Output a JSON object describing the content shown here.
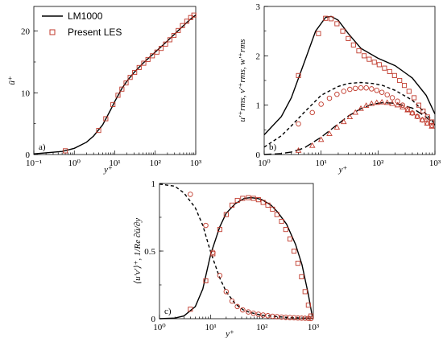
{
  "chart_data": [
    {
      "type": "line",
      "panel_label": "a)",
      "xlabel": "y⁺",
      "ylabel": "ū⁺",
      "xscale": "log",
      "xlim": [
        0.1,
        1000
      ],
      "ylim": [
        0,
        24
      ],
      "x_ticks": [
        0.1,
        1,
        10,
        100,
        1000
      ],
      "x_tick_labels": [
        "10⁻¹",
        "10⁰",
        "10¹",
        "10²",
        "10³"
      ],
      "y_ticks": [
        0,
        10,
        20
      ],
      "y_tick_labels": [
        "0",
        "10",
        "20"
      ],
      "legend": {
        "position": "top-left",
        "entries": [
          "LM1000",
          "Present LES"
        ]
      },
      "series": [
        {
          "name": "LM1000",
          "style": "solid-line",
          "x": [
            0.1,
            0.5,
            1,
            2,
            3,
            5,
            8,
            10,
            15,
            20,
            30,
            50,
            100,
            200,
            400,
            700,
            1000
          ],
          "y": [
            0.1,
            0.5,
            1.0,
            2.0,
            3.0,
            4.8,
            7.3,
            8.6,
            10.7,
            11.9,
            13.3,
            14.8,
            16.6,
            18.4,
            20.3,
            21.8,
            22.6
          ]
        },
        {
          "name": "Present LES",
          "style": "square-markers",
          "x": [
            0.6,
            4,
            6,
            9,
            12,
            15,
            19,
            24,
            31,
            40,
            52,
            66,
            85,
            110,
            140,
            180,
            230,
            290,
            370,
            470,
            600,
            750,
            900
          ],
          "y": [
            0.6,
            3.9,
            5.8,
            8.1,
            9.6,
            10.6,
            11.6,
            12.5,
            13.3,
            14.1,
            14.8,
            15.4,
            16.0,
            16.6,
            17.2,
            17.9,
            18.6,
            19.3,
            20.1,
            20.9,
            21.6,
            22.2,
            22.6
          ]
        }
      ]
    },
    {
      "type": "line",
      "panel_label": "b)",
      "xlabel": "y⁺",
      "ylabel": "u′⁺rms, v′⁺rms, w′⁺rms",
      "xscale": "log",
      "xlim": [
        1,
        1000
      ],
      "ylim": [
        0,
        3
      ],
      "x_ticks": [
        1,
        10,
        100,
        1000
      ],
      "x_tick_labels": [
        "10⁰",
        "10¹",
        "10²",
        "10³"
      ],
      "y_ticks": [
        0,
        1,
        2,
        3
      ],
      "y_tick_labels": [
        "0",
        "1",
        "2",
        "3"
      ],
      "series": [
        {
          "style": "solid-line",
          "x": [
            1,
            2,
            3,
            5,
            8,
            12,
            15,
            20,
            30,
            50,
            100,
            200,
            400,
            700,
            1000
          ],
          "y": [
            0.4,
            0.77,
            1.15,
            1.85,
            2.5,
            2.78,
            2.8,
            2.72,
            2.45,
            2.15,
            1.95,
            1.8,
            1.55,
            1.2,
            0.82
          ]
        },
        {
          "style": "dashed-line",
          "x": [
            1,
            2,
            3,
            5,
            10,
            20,
            30,
            50,
            80,
            120,
            200,
            400,
            700,
            1000
          ],
          "y": [
            0.15,
            0.38,
            0.58,
            0.85,
            1.2,
            1.38,
            1.44,
            1.46,
            1.44,
            1.4,
            1.3,
            1.1,
            0.82,
            0.62
          ]
        },
        {
          "style": "long-dash-line",
          "x": [
            1,
            2,
            3,
            5,
            10,
            20,
            30,
            50,
            80,
            120,
            200,
            400,
            700,
            1000
          ],
          "y": [
            0.0,
            0.02,
            0.05,
            0.13,
            0.35,
            0.62,
            0.78,
            0.93,
            1.02,
            1.05,
            1.04,
            0.94,
            0.76,
            0.6
          ]
        },
        {
          "style": "square-markers",
          "x": [
            4,
            9,
            12,
            15,
            19,
            24,
            30,
            37,
            46,
            57,
            70,
            86,
            105,
            130,
            160,
            195,
            240,
            290,
            350,
            430,
            520,
            620,
            740,
            880
          ],
          "y": [
            1.6,
            2.45,
            2.76,
            2.75,
            2.65,
            2.5,
            2.35,
            2.22,
            2.1,
            2.0,
            1.93,
            1.87,
            1.82,
            1.75,
            1.68,
            1.6,
            1.5,
            1.4,
            1.28,
            1.15,
            1.0,
            0.88,
            0.76,
            0.66
          ]
        },
        {
          "style": "circle-markers",
          "x": [
            4,
            7,
            10,
            14,
            19,
            25,
            32,
            40,
            50,
            62,
            77,
            95,
            117,
            145,
            178,
            220,
            270,
            330,
            400,
            490,
            600,
            730,
            880
          ],
          "y": [
            0.62,
            0.85,
            1.02,
            1.14,
            1.22,
            1.28,
            1.32,
            1.34,
            1.35,
            1.35,
            1.33,
            1.3,
            1.26,
            1.21,
            1.15,
            1.08,
            1.0,
            0.92,
            0.84,
            0.77,
            0.7,
            0.64,
            0.59
          ]
        },
        {
          "style": "triangle-markers",
          "x": [
            4,
            7,
            10,
            14,
            19,
            25,
            32,
            40,
            50,
            62,
            77,
            95,
            117,
            145,
            178,
            220,
            270,
            330,
            400,
            490,
            600,
            730,
            880
          ],
          "y": [
            0.08,
            0.18,
            0.3,
            0.42,
            0.55,
            0.66,
            0.76,
            0.85,
            0.93,
            0.99,
            1.03,
            1.05,
            1.06,
            1.05,
            1.03,
            1.0,
            0.96,
            0.9,
            0.84,
            0.77,
            0.7,
            0.63,
            0.57
          ]
        }
      ]
    },
    {
      "type": "line",
      "panel_label": "c)",
      "xlabel": "y⁺",
      "ylabel": "⟨u′v′⟩⁺, 1/Re ∂ū/∂y",
      "xscale": "log",
      "xlim": [
        1,
        1000
      ],
      "ylim": [
        0,
        1
      ],
      "x_ticks": [
        1,
        10,
        100,
        1000
      ],
      "x_tick_labels": [
        "10⁰",
        "10¹",
        "10²",
        "10³"
      ],
      "y_ticks": [
        0,
        0.5,
        1
      ],
      "y_tick_labels": [
        "0",
        "0.5",
        "1"
      ],
      "series": [
        {
          "style": "solid-line",
          "x": [
            1,
            2,
            3,
            5,
            7,
            10,
            15,
            20,
            30,
            45,
            60,
            80,
            100,
            150,
            200,
            300,
            450,
            600,
            800,
            950
          ],
          "y": [
            0.0,
            0.005,
            0.02,
            0.09,
            0.22,
            0.48,
            0.68,
            0.78,
            0.85,
            0.89,
            0.895,
            0.89,
            0.88,
            0.84,
            0.79,
            0.7,
            0.55,
            0.4,
            0.18,
            0.02
          ]
        },
        {
          "style": "dashed-line",
          "x": [
            1,
            2,
            3,
            5,
            7,
            10,
            15,
            20,
            30,
            45,
            60,
            100,
            200,
            400,
            700,
            950
          ],
          "y": [
            0.995,
            0.98,
            0.93,
            0.82,
            0.69,
            0.49,
            0.3,
            0.2,
            0.11,
            0.06,
            0.045,
            0.025,
            0.015,
            0.007,
            0.003,
            0.001
          ]
        },
        {
          "style": "square-markers",
          "x": [
            4,
            8,
            11,
            15,
            20,
            26,
            33,
            42,
            54,
            68,
            85,
            105,
            130,
            160,
            195,
            240,
            290,
            350,
            420,
            500,
            590,
            690,
            800,
            900
          ],
          "y": [
            0.07,
            0.28,
            0.48,
            0.66,
            0.77,
            0.84,
            0.875,
            0.89,
            0.895,
            0.89,
            0.88,
            0.86,
            0.84,
            0.81,
            0.77,
            0.72,
            0.66,
            0.59,
            0.5,
            0.41,
            0.31,
            0.2,
            0.1,
            0.02
          ]
        },
        {
          "style": "circle-markers",
          "x": [
            4,
            8,
            11,
            15,
            20,
            26,
            33,
            42,
            54,
            68,
            85,
            105,
            130,
            160,
            195,
            240,
            290,
            350,
            420,
            500,
            590,
            690,
            800,
            900
          ],
          "y": [
            0.92,
            0.69,
            0.49,
            0.32,
            0.2,
            0.13,
            0.09,
            0.065,
            0.05,
            0.04,
            0.033,
            0.027,
            0.022,
            0.018,
            0.015,
            0.012,
            0.01,
            0.008,
            0.007,
            0.005,
            0.004,
            0.003,
            0.002,
            0.001
          ]
        }
      ]
    }
  ]
}
